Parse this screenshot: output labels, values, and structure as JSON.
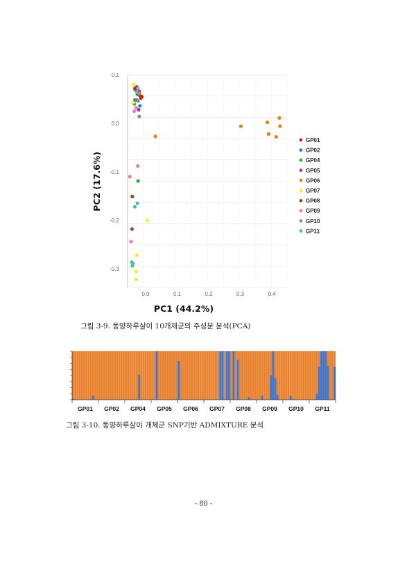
{
  "figure1": {
    "caption": "그림 3-9. 동양하루살이 10개체군의 주성분 분석(PCA)",
    "chart_data": {
      "type": "scatter",
      "title": "",
      "xlabel": "PC1 (44.2%)",
      "ylabel": "PC2 (17.6%)",
      "xlim": [
        -0.06,
        0.45
      ],
      "ylim": [
        -0.34,
        0.11
      ],
      "x_ticks": [
        "0.0",
        "0.1",
        "0.2",
        "0.3",
        "0.4"
      ],
      "y_ticks": [
        "0.1",
        "0.0",
        "-0.1",
        "-0.2",
        "-0.3"
      ],
      "x_tick_values": [
        0.0,
        0.1,
        0.2,
        0.3,
        0.4
      ],
      "y_tick_values": [
        0.1,
        0.0,
        -0.1,
        -0.2,
        -0.3
      ],
      "grid": true,
      "legend_position": "right",
      "series": [
        {
          "name": "GP01",
          "color": "#d62020",
          "points": [
            [
              -0.018,
              0.057
            ],
            [
              -0.012,
              0.055
            ],
            [
              -0.02,
              0.061
            ],
            [
              -0.015,
              0.052
            ]
          ]
        },
        {
          "name": "GP02",
          "color": "#2f7fc1",
          "points": [
            [
              -0.034,
              0.048
            ],
            [
              -0.018,
              0.036
            ],
            [
              -0.026,
              0.06
            ],
            [
              -0.03,
              0.07
            ]
          ]
        },
        {
          "name": "GP04",
          "color": "#3aa63a",
          "points": [
            [
              -0.033,
              0.069
            ],
            [
              -0.028,
              0.048
            ],
            [
              -0.036,
              0.04
            ],
            [
              -0.024,
              -0.119
            ]
          ]
        },
        {
          "name": "GP05",
          "color": "#8a45a8",
          "points": [
            [
              -0.028,
              0.075
            ],
            [
              -0.02,
              0.066
            ],
            [
              -0.022,
              0.028
            ],
            [
              -0.043,
              -0.218
            ]
          ]
        },
        {
          "name": "GP06",
          "color": "#e47d1a",
          "points": [
            [
              0.031,
              -0.027
            ],
            [
              0.302,
              -0.006
            ],
            [
              0.386,
              0.002
            ],
            [
              0.39,
              -0.022
            ],
            [
              0.414,
              -0.028
            ],
            [
              0.424,
              0.011
            ],
            [
              0.426,
              -0.006
            ],
            [
              -0.02,
              0.062
            ]
          ]
        },
        {
          "name": "GP07",
          "color": "#f2ee2c",
          "points": [
            [
              -0.038,
              0.08
            ],
            [
              -0.04,
              0.043
            ],
            [
              0.005,
              -0.2
            ],
            [
              -0.028,
              -0.272
            ],
            [
              -0.03,
              -0.306
            ],
            [
              -0.03,
              -0.322
            ]
          ]
        },
        {
          "name": "GP08",
          "color": "#8b4513",
          "points": [
            [
              -0.034,
              0.072
            ],
            [
              -0.042,
              -0.151
            ]
          ]
        },
        {
          "name": "GP09",
          "color": "#e87cbf",
          "points": [
            [
              -0.024,
              0.072
            ],
            [
              -0.03,
              0.032
            ],
            [
              -0.036,
              0.025
            ],
            [
              -0.025,
              -0.088
            ],
            [
              -0.05,
              -0.11
            ],
            [
              -0.046,
              -0.244
            ]
          ]
        },
        {
          "name": "GP10",
          "color": "#8c8c8c",
          "points": [
            [
              -0.024,
              0.046
            ],
            [
              -0.02,
              0.014
            ]
          ]
        },
        {
          "name": "GP11",
          "color": "#4cc0a0",
          "points": [
            [
              -0.028,
              0.064
            ],
            [
              -0.026,
              -0.165
            ],
            [
              -0.034,
              -0.172
            ],
            [
              -0.044,
              -0.286
            ],
            [
              -0.042,
              -0.294
            ],
            [
              -0.04,
              -0.289
            ]
          ]
        }
      ]
    }
  },
  "figure2": {
    "caption": "그림 3-10. 동양하루살이 개체군 SNP기반 ADMIXTURE 분석",
    "chart_data": {
      "type": "bar",
      "stacked": true,
      "colors": {
        "cluster1": "#e8822e",
        "cluster2": "#4472c4"
      },
      "groups": [
        "GP01",
        "GP02",
        "GP04",
        "GP05",
        "GP06",
        "GP07",
        "GP08",
        "GP09",
        "GP10",
        "GP11"
      ],
      "blue_fraction": [
        0.02,
        0,
        0,
        0,
        0,
        0,
        0,
        0,
        0,
        0.08,
        0,
        0,
        0,
        0,
        0,
        0,
        0,
        0,
        0,
        0,
        0,
        0,
        0,
        0,
        0,
        0,
        0,
        0,
        0,
        0,
        0.52,
        0,
        0,
        0,
        0,
        0,
        0,
        0,
        1,
        0,
        0,
        0,
        0,
        0,
        0,
        0,
        0,
        0,
        0.8,
        0,
        0,
        0,
        0,
        0,
        0,
        0,
        0,
        0,
        0,
        0,
        0,
        0,
        0,
        0,
        0,
        0,
        0,
        1,
        1,
        0,
        1,
        1,
        0,
        1,
        0,
        0.82,
        0,
        0,
        0,
        0,
        0.05,
        0,
        0,
        0,
        0,
        0,
        0.08,
        0,
        0,
        0,
        0.5,
        1,
        0.44,
        0.1,
        0,
        0,
        0,
        0,
        0,
        0.08,
        0,
        0,
        0,
        0,
        0,
        0,
        0,
        0,
        0,
        0,
        0,
        0.12,
        0.68,
        1,
        1,
        1,
        0.7,
        0,
        0,
        0.68
      ]
    }
  },
  "page_number": "- 80 -"
}
